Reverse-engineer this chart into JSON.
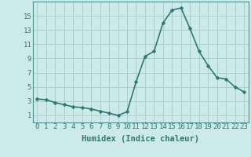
{
  "x": [
    0,
    1,
    2,
    3,
    4,
    5,
    6,
    7,
    8,
    9,
    10,
    11,
    12,
    13,
    14,
    15,
    16,
    17,
    18,
    19,
    20,
    21,
    22,
    23
  ],
  "y": [
    3.3,
    3.2,
    2.8,
    2.5,
    2.2,
    2.1,
    1.9,
    1.6,
    1.3,
    1.0,
    1.5,
    5.7,
    9.3,
    10.0,
    14.0,
    15.8,
    16.1,
    13.2,
    10.0,
    8.0,
    6.3,
    6.1,
    5.0,
    4.3
  ],
  "line_color": "#2d7a6e",
  "marker": "D",
  "marker_size": 2.5,
  "line_width": 1.2,
  "bg_color": "#cceaea",
  "grid_color": "#aacfcf",
  "xlabel": "Humidex (Indice chaleur)",
  "xlabel_fontsize": 7.5,
  "ylabel_ticks": [
    1,
    3,
    5,
    7,
    9,
    11,
    13,
    15
  ],
  "xlim": [
    -0.5,
    23.5
  ],
  "ylim": [
    0.0,
    17.0
  ],
  "tick_fontsize": 6.5
}
